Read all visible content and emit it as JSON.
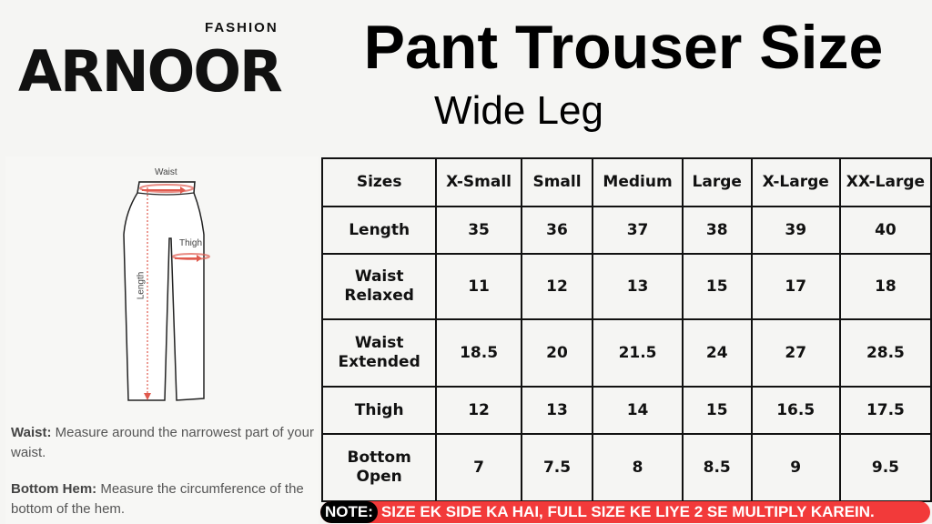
{
  "logo": {
    "brand": "ARNOOR",
    "sub": "FASHION"
  },
  "header": {
    "title": "Pant Trouser Size",
    "subtitle": "Wide Leg"
  },
  "diagram": {
    "labels": {
      "waist": "Waist",
      "thigh": "Thigh",
      "length": "Length"
    },
    "accent": "#e05a4e"
  },
  "descriptions": [
    {
      "term": "Waist:",
      "text": " Measure around the narrowest part of your waist."
    },
    {
      "term": "Bottom Hem:",
      "text": " Measure the circumference of the bottom of the hem."
    }
  ],
  "table": {
    "headers": [
      "Sizes",
      "X-Small",
      "Small",
      "Medium",
      "Large",
      "X-Large",
      "XX-Large"
    ],
    "rows": [
      {
        "label": "Length",
        "values": [
          "35",
          "36",
          "37",
          "38",
          "39",
          "40"
        ]
      },
      {
        "label": "Waist Relaxed",
        "values": [
          "11",
          "12",
          "13",
          "15",
          "17",
          "18"
        ]
      },
      {
        "label": "Waist Extended",
        "values": [
          "18.5",
          "20",
          "21.5",
          "24",
          "27",
          "28.5"
        ]
      },
      {
        "label": "Thigh",
        "values": [
          "12",
          "13",
          "14",
          "15",
          "16.5",
          "17.5"
        ]
      },
      {
        "label": "Bottom Open",
        "values": [
          "7",
          "7.5",
          "8",
          "8.5",
          "9",
          "9.5"
        ]
      }
    ]
  },
  "note": {
    "tag": "NOTE:",
    "text": "SIZE EK SIDE KA HAI, FULL SIZE KE LIYE 2 SE MULTIPLY KAREIN.",
    "color": "#f23a3a"
  }
}
